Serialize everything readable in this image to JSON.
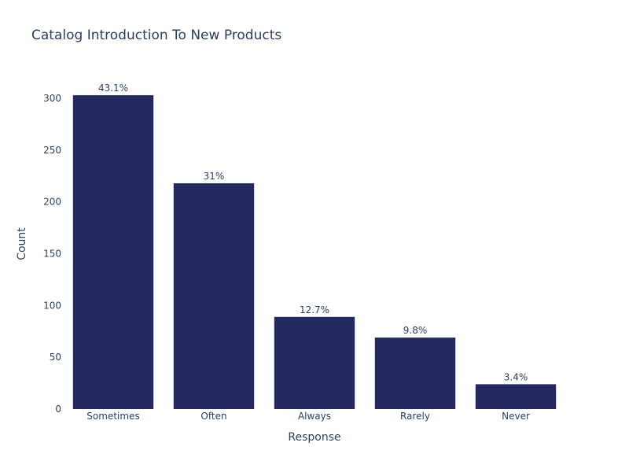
{
  "chart_data": {
    "type": "bar",
    "title": "Catalog Introduction To New Products",
    "xlabel": "Response",
    "ylabel": "Count",
    "categories": [
      "Sometimes",
      "Often",
      "Always",
      "Rarely",
      "Never"
    ],
    "values": [
      303,
      218,
      89,
      69,
      24
    ],
    "data_labels": [
      "43.1%",
      "31%",
      "12.7%",
      "9.8%",
      "3.4%"
    ],
    "y_ticks": [
      0,
      50,
      100,
      150,
      200,
      250,
      300
    ],
    "ylim": [
      0,
      319
    ],
    "grid": false,
    "legend": "none",
    "bar_color": "#232a61"
  }
}
